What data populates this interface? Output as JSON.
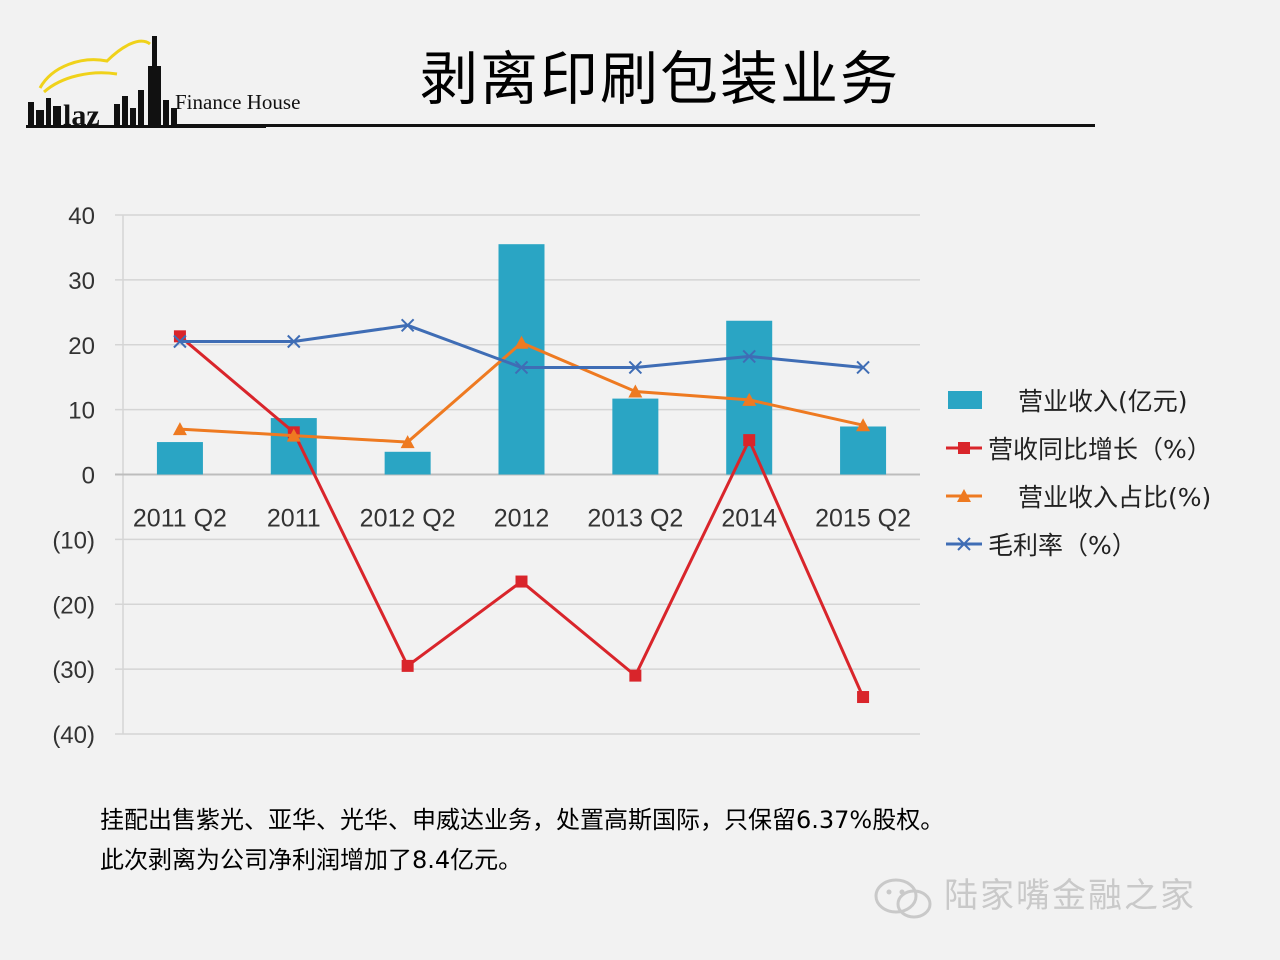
{
  "slide": {
    "logo_text": "Finance House",
    "title": "剥离印刷包装业务",
    "caption_lines": [
      "挂配出售紫光、亚华、光华、申威达业务，处置高斯国际，只保留6.37%股权。",
      "此次剥离为公司净利润增加了8.4亿元。"
    ],
    "watermark": "陆家嘴金融之家"
  },
  "chart_data": {
    "type": "bar",
    "title": "",
    "xlabel": "",
    "ylabel": "",
    "ylim": [
      -40,
      40
    ],
    "yticks": [
      "40",
      "30",
      "20",
      "10",
      "0",
      "(10)",
      "(20)",
      "(30)",
      "(40)"
    ],
    "yticks_values": [
      40,
      30,
      20,
      10,
      0,
      -10,
      -20,
      -30,
      -40
    ],
    "grid": true,
    "legend_position": "right",
    "categories": [
      "2011 Q2",
      "2011",
      "2012 Q2",
      "2012",
      "2013 Q2",
      "2014",
      "2015 Q2"
    ],
    "series": [
      {
        "name": "营业收入(亿元)",
        "type": "bar",
        "color": "#2aa5c4",
        "marker": "none",
        "values": [
          5,
          8.7,
          3.5,
          35.5,
          11.7,
          23.7,
          7.4
        ]
      },
      {
        "name": "营收同比增长（%）",
        "type": "line",
        "color": "#d9252b",
        "marker": "square",
        "values": [
          21.3,
          6.5,
          -29.5,
          -16.5,
          -31,
          5.3,
          -34.3
        ]
      },
      {
        "name": "营业收入占比(%)",
        "type": "line",
        "color": "#ee7a21",
        "marker": "triangle",
        "values": [
          7,
          6,
          5,
          20.3,
          12.8,
          11.5,
          7.6
        ]
      },
      {
        "name": "毛利率（%）",
        "type": "line",
        "color": "#3f6db5",
        "marker": "x",
        "values": [
          20.5,
          20.5,
          23,
          16.5,
          16.5,
          18.2,
          16.5
        ]
      }
    ]
  }
}
